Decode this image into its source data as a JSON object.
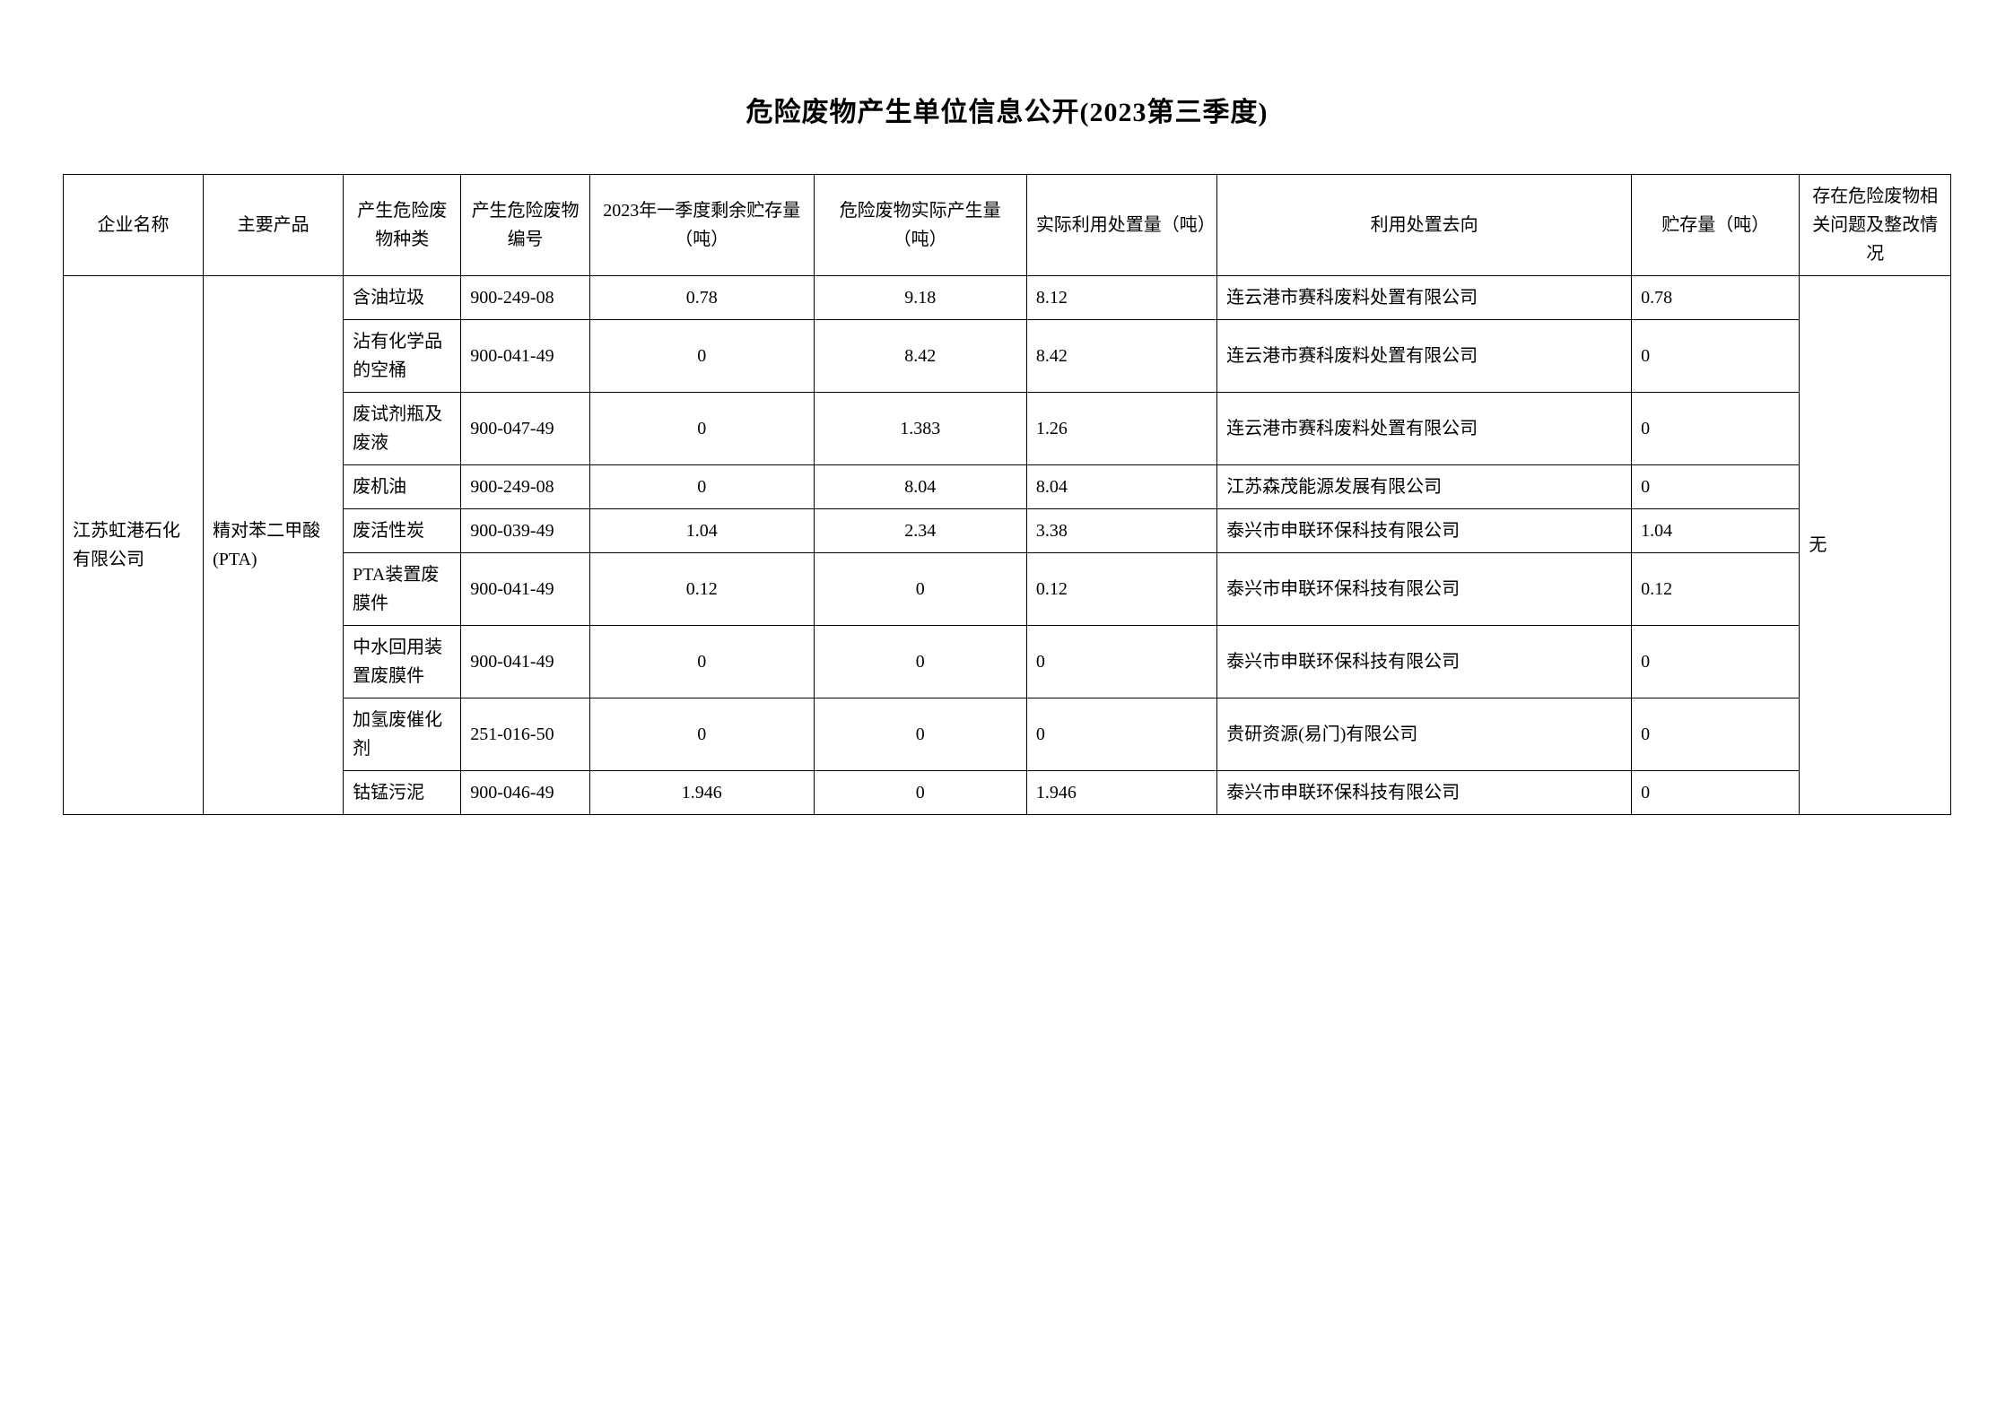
{
  "title": "危险废物产生单位信息公开(2023第三季度)",
  "columns": {
    "company": "企业名称",
    "product": "主要产品",
    "waste_type": "产生危险废物种类",
    "waste_code": "产生危险废物编号",
    "prev_stock": "2023年一季度剩余贮存量（吨）",
    "actual_gen": "危险废物实际产生量（吨）",
    "actual_disp": "实际利用处置量（吨）",
    "destination": "利用处置去向",
    "stock": "贮存量（吨）",
    "issues": "存在危险废物相关问题及整改情况"
  },
  "company_name": "江苏虹港石化有限公司",
  "main_product": "精对苯二甲酸(PTA)",
  "issues_status": "无",
  "rows": [
    {
      "waste_type": "含油垃圾",
      "waste_code": "900-249-08",
      "prev_stock": "0.78",
      "actual_gen": "9.18",
      "actual_disp": "8.12",
      "destination": "连云港市赛科废料处置有限公司",
      "stock": "0.78"
    },
    {
      "waste_type": "沾有化学品的空桶",
      "waste_code": "900-041-49",
      "prev_stock": "0",
      "actual_gen": "8.42",
      "actual_disp": "8.42",
      "destination": "连云港市赛科废料处置有限公司",
      "stock": "0"
    },
    {
      "waste_type": "废试剂瓶及废液",
      "waste_code": "900-047-49",
      "prev_stock": "0",
      "actual_gen": "1.383",
      "actual_disp": "1.26",
      "destination": "连云港市赛科废料处置有限公司",
      "stock": "0"
    },
    {
      "waste_type": "废机油",
      "waste_code": "900-249-08",
      "prev_stock": "0",
      "actual_gen": "8.04",
      "actual_disp": "8.04",
      "destination": "江苏森茂能源发展有限公司",
      "stock": "0"
    },
    {
      "waste_type": "废活性炭",
      "waste_code": "900-039-49",
      "prev_stock": "1.04",
      "actual_gen": "2.34",
      "actual_disp": "3.38",
      "destination": "泰兴市申联环保科技有限公司",
      "stock": "1.04"
    },
    {
      "waste_type": "PTA装置废膜件",
      "waste_code": "900-041-49",
      "prev_stock": "0.12",
      "actual_gen": "0",
      "actual_disp": "0.12",
      "destination": "泰兴市申联环保科技有限公司",
      "stock": "0.12"
    },
    {
      "waste_type": "中水回用装置废膜件",
      "waste_code": "900-041-49",
      "prev_stock": "0",
      "actual_gen": "0",
      "actual_disp": "0",
      "destination": "泰兴市申联环保科技有限公司",
      "stock": "0"
    },
    {
      "waste_type": "加氢废催化剂",
      "waste_code": "251-016-50",
      "prev_stock": "0",
      "actual_gen": "0",
      "actual_disp": "0",
      "destination": "贵研资源(易门)有限公司",
      "stock": "0"
    },
    {
      "waste_type": "钴锰污泥",
      "waste_code": "900-046-49",
      "prev_stock": "1.946",
      "actual_gen": "0",
      "actual_disp": "1.946",
      "destination": "泰兴市申联环保科技有限公司",
      "stock": "0"
    }
  ]
}
